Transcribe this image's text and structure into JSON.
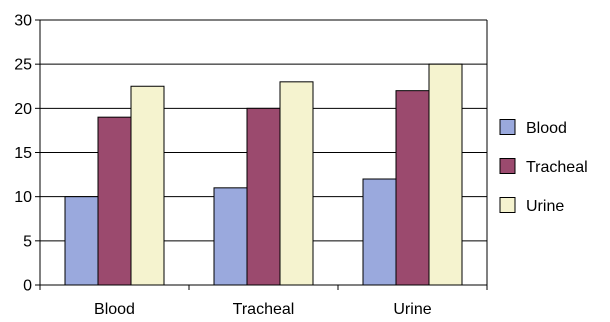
{
  "chart_data": {
    "type": "bar",
    "title": "",
    "xlabel": "",
    "ylabel": "",
    "categories": [
      "Blood",
      "Tracheal",
      "Urine"
    ],
    "series": [
      {
        "name": "Blood",
        "values": [
          10,
          11,
          12
        ],
        "color": "#9aa9dd"
      },
      {
        "name": "Tracheal",
        "values": [
          19,
          20,
          22
        ],
        "color": "#9b4a6e"
      },
      {
        "name": "Urine",
        "values": [
          22.5,
          23,
          25
        ],
        "color": "#f5f3cf"
      }
    ],
    "ylim": [
      0,
      30
    ],
    "yticks": [
      0,
      5,
      10,
      15,
      20,
      25,
      30
    ],
    "grid": true,
    "legend_position": "right"
  }
}
